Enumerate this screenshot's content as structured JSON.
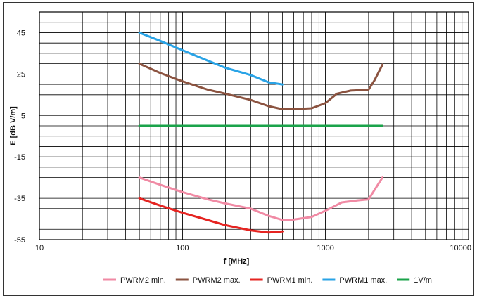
{
  "chart_data": {
    "type": "line",
    "xlabel": "f [MHz]",
    "ylabel": "E [dB V/m]",
    "xscale": "log",
    "xlim": [
      10,
      10000
    ],
    "ylim": [
      -55,
      55
    ],
    "grid": true,
    "legend_position": "bottom",
    "x_ticks": [
      10,
      100,
      1000,
      10000
    ],
    "x_tick_labels": [
      "10",
      "100",
      "1000",
      "10000"
    ],
    "y_ticks": [
      45,
      25,
      5,
      -15,
      -35,
      -55
    ],
    "y_tick_labels": [
      "45",
      "25",
      "5",
      "-15",
      "-35",
      "-55"
    ],
    "series": [
      {
        "name": "PWRM2 min.",
        "color": "#f08aa4",
        "x": [
          50,
          70,
          100,
          150,
          200,
          300,
          400,
          500,
          600,
          800,
          1000,
          1300,
          1700,
          2000,
          2200,
          2500
        ],
        "y": [
          -25,
          -28.5,
          -32,
          -35.5,
          -37.5,
          -40,
          -43.5,
          -45.5,
          -45.3,
          -44,
          -41,
          -37,
          -36,
          -35.5,
          -31,
          -25
        ]
      },
      {
        "name": "PWRM2 max.",
        "color": "#8b5340",
        "x": [
          50,
          70,
          100,
          150,
          200,
          300,
          400,
          500,
          600,
          800,
          1000,
          1200,
          1500,
          2000,
          2200,
          2500
        ],
        "y": [
          30,
          25.5,
          21.5,
          17.5,
          15.5,
          12.5,
          9.5,
          8,
          8,
          8.5,
          11,
          15.5,
          17,
          17.5,
          22,
          29.5
        ]
      },
      {
        "name": "PWRM1 min.",
        "color": "#e52421",
        "x": [
          50,
          70,
          100,
          150,
          200,
          300,
          400,
          500
        ],
        "y": [
          -35,
          -38.5,
          -42,
          -45.5,
          -48,
          -50.5,
          -51.5,
          -51
        ]
      },
      {
        "name": "PWRM1 max.",
        "color": "#29a3e6",
        "x": [
          50,
          70,
          100,
          150,
          200,
          300,
          400,
          500
        ],
        "y": [
          45,
          41,
          36.5,
          31.5,
          28,
          24.5,
          21,
          20
        ]
      },
      {
        "name": "1V/m",
        "color": "#1aa34a",
        "x": [
          50,
          2500
        ],
        "y": [
          0,
          0
        ]
      }
    ]
  }
}
